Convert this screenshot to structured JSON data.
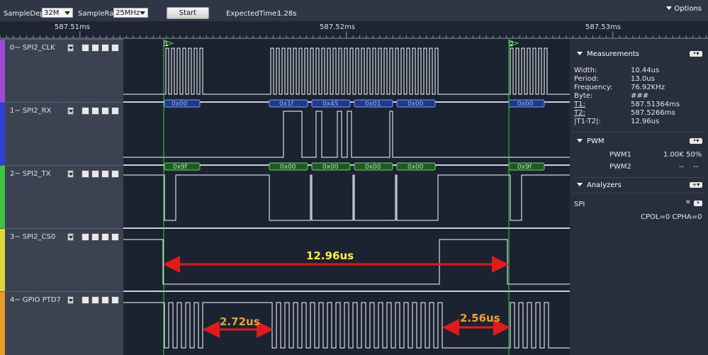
{
  "toolbar": {
    "sample_depth_label": "SampleDepth",
    "sample_depth_value": "32M",
    "sample_rate_label": "SampleRate",
    "sample_rate_value": "25MHz",
    "start_label": "Start",
    "expected_time_label": "ExpectedTime:",
    "expected_time_value": "1.28s",
    "options_label": "Options"
  },
  "timeline": {
    "labels": [
      "587.51ms",
      "587.52ms",
      "587.53ms"
    ]
  },
  "cursors": {
    "c1": "1",
    "c2": "2"
  },
  "channels": [
    {
      "name": "0~ SPI2_CLK",
      "color": "#9b4bd6"
    },
    {
      "name": "1~ SPI2_RX",
      "color": "#2f3fd8"
    },
    {
      "name": "2~ SPI2_TX",
      "color": "#3fc43f"
    },
    {
      "name": "3~ SPI2_CS0",
      "color": "#e3d53a"
    },
    {
      "name": "4~ GPIO PTD7",
      "color": "#e89a2a"
    }
  ],
  "decode": {
    "rx": [
      "0x00",
      "0x1f",
      "0x45",
      "0x01",
      "0x00",
      "0x00"
    ],
    "tx": [
      "0x9f",
      "0x00",
      "0x00",
      "0x00",
      "0x00",
      "0x9f"
    ]
  },
  "annotations": {
    "cs_width": "12.96us",
    "gap1": "2.72us",
    "gap2": "2.56us"
  },
  "measurements": {
    "title": "Measurements",
    "rows": [
      {
        "label": "Width:",
        "value": "10.44us"
      },
      {
        "label": "Period:",
        "value": "13.0us"
      },
      {
        "label": "Frequency:",
        "value": "76.92KHz"
      },
      {
        "label": "Byte:",
        "value": "###"
      },
      {
        "label": "T1:",
        "value": "587.51364ms"
      },
      {
        "label": "T2:",
        "value": "587.5266ms"
      },
      {
        "label": "|T1-T2|:",
        "value": "12.96us"
      }
    ]
  },
  "pwm": {
    "title": "PWM",
    "rows": [
      {
        "name": "PWM1",
        "freq": "1.00K",
        "duty": "50%"
      },
      {
        "name": "PWM2",
        "freq": "--",
        "duty": "--"
      }
    ]
  },
  "analyzers": {
    "title": "Analyzers",
    "name": "SPI",
    "config": "CPOL=0 CPHA=0"
  },
  "colors": {
    "accent_green": "#3fd13f",
    "arrow_red": "#e01b1b",
    "label_yellow": "#ffef3a",
    "label_orange": "#f0a030"
  }
}
